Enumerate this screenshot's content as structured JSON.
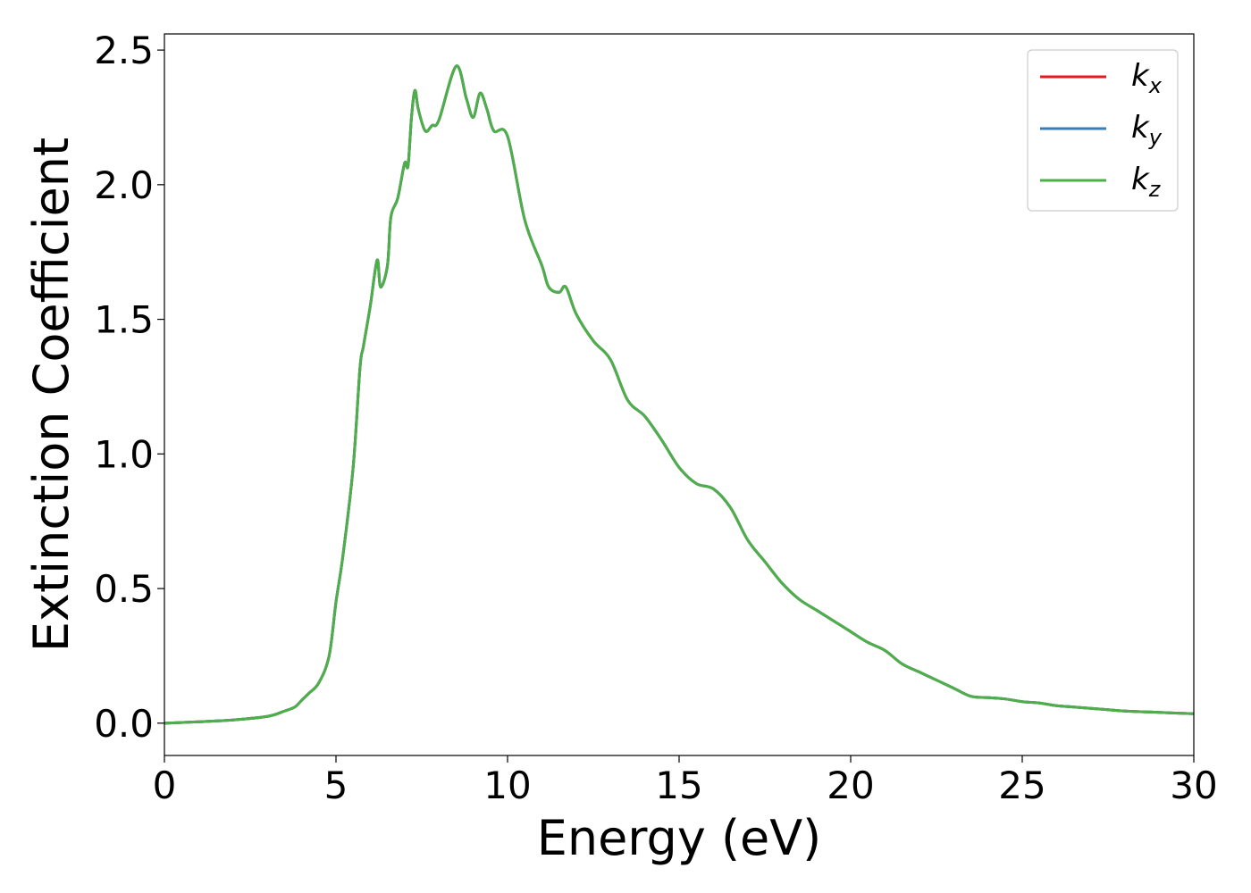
{
  "chart_data": {
    "type": "line",
    "xlabel": "Energy (eV)",
    "ylabel": "Extinction Coefficient",
    "xlim": [
      0,
      30
    ],
    "ylim": [
      -0.12,
      2.56
    ],
    "xticks": [
      0,
      5,
      10,
      15,
      20,
      25,
      30
    ],
    "xtick_labels": [
      "0",
      "5",
      "10",
      "15",
      "20",
      "25",
      "30"
    ],
    "yticks": [
      0.0,
      0.5,
      1.0,
      1.5,
      2.0,
      2.5
    ],
    "ytick_labels": [
      "0.0",
      "0.5",
      "1.0",
      "1.5",
      "2.0",
      "2.5"
    ],
    "grid": false,
    "legend_position": "top-right",
    "x": [
      0,
      1,
      2,
      3,
      3.5,
      3.8,
      4.0,
      4.2,
      4.5,
      4.8,
      5.0,
      5.2,
      5.5,
      5.7,
      5.8,
      6.0,
      6.2,
      6.3,
      6.5,
      6.6,
      6.8,
      7.0,
      7.1,
      7.2,
      7.3,
      7.4,
      7.6,
      7.8,
      8.0,
      8.5,
      8.8,
      9.0,
      9.2,
      9.4,
      9.6,
      10.0,
      10.5,
      11.0,
      11.2,
      11.5,
      11.7,
      12.0,
      12.5,
      13.0,
      13.5,
      14.0,
      14.5,
      15.0,
      15.5,
      16.0,
      16.5,
      17.0,
      17.5,
      18.0,
      18.5,
      19.0,
      19.5,
      20.0,
      20.5,
      21.0,
      21.5,
      22.0,
      22.5,
      23.0,
      23.5,
      24.0,
      24.5,
      25.0,
      25.5,
      26.0,
      26.5,
      27.0,
      27.5,
      28.0,
      29.0,
      30.0
    ],
    "series": [
      {
        "name": "k_x",
        "label_base": "k",
        "label_sub": "x",
        "color": "#e41a1c",
        "values": [
          0.0,
          0.005,
          0.012,
          0.025,
          0.045,
          0.06,
          0.085,
          0.11,
          0.15,
          0.25,
          0.45,
          0.62,
          0.95,
          1.32,
          1.4,
          1.55,
          1.72,
          1.62,
          1.7,
          1.88,
          1.95,
          2.08,
          2.07,
          2.25,
          2.35,
          2.28,
          2.2,
          2.22,
          2.24,
          2.44,
          2.32,
          2.25,
          2.34,
          2.28,
          2.2,
          2.18,
          1.87,
          1.7,
          1.62,
          1.6,
          1.62,
          1.52,
          1.42,
          1.35,
          1.2,
          1.14,
          1.05,
          0.95,
          0.89,
          0.87,
          0.8,
          0.68,
          0.6,
          0.52,
          0.46,
          0.42,
          0.38,
          0.34,
          0.3,
          0.27,
          0.22,
          0.19,
          0.16,
          0.13,
          0.1,
          0.095,
          0.09,
          0.08,
          0.075,
          0.065,
          0.06,
          0.055,
          0.05,
          0.045,
          0.04,
          0.035
        ]
      },
      {
        "name": "k_y",
        "label_base": "k",
        "label_sub": "y",
        "color": "#377eb8",
        "values": [
          0.0,
          0.005,
          0.012,
          0.025,
          0.045,
          0.06,
          0.085,
          0.11,
          0.15,
          0.25,
          0.45,
          0.62,
          0.95,
          1.32,
          1.4,
          1.55,
          1.72,
          1.62,
          1.7,
          1.88,
          1.95,
          2.08,
          2.07,
          2.25,
          2.35,
          2.28,
          2.2,
          2.22,
          2.24,
          2.44,
          2.32,
          2.25,
          2.34,
          2.28,
          2.2,
          2.18,
          1.87,
          1.7,
          1.62,
          1.6,
          1.62,
          1.52,
          1.42,
          1.35,
          1.2,
          1.14,
          1.05,
          0.95,
          0.89,
          0.87,
          0.8,
          0.68,
          0.6,
          0.52,
          0.46,
          0.42,
          0.38,
          0.34,
          0.3,
          0.27,
          0.22,
          0.19,
          0.16,
          0.13,
          0.1,
          0.095,
          0.09,
          0.08,
          0.075,
          0.065,
          0.06,
          0.055,
          0.05,
          0.045,
          0.04,
          0.035
        ]
      },
      {
        "name": "k_z",
        "label_base": "k",
        "label_sub": "z",
        "color": "#4daf4a",
        "values": [
          0.0,
          0.005,
          0.012,
          0.025,
          0.045,
          0.06,
          0.085,
          0.11,
          0.15,
          0.25,
          0.45,
          0.62,
          0.95,
          1.32,
          1.4,
          1.55,
          1.72,
          1.62,
          1.7,
          1.88,
          1.95,
          2.08,
          2.07,
          2.25,
          2.35,
          2.28,
          2.2,
          2.22,
          2.24,
          2.44,
          2.32,
          2.25,
          2.34,
          2.28,
          2.2,
          2.18,
          1.87,
          1.7,
          1.62,
          1.6,
          1.62,
          1.52,
          1.42,
          1.35,
          1.2,
          1.14,
          1.05,
          0.95,
          0.89,
          0.87,
          0.8,
          0.68,
          0.6,
          0.52,
          0.46,
          0.42,
          0.38,
          0.34,
          0.3,
          0.27,
          0.22,
          0.19,
          0.16,
          0.13,
          0.1,
          0.095,
          0.09,
          0.08,
          0.075,
          0.065,
          0.06,
          0.055,
          0.05,
          0.045,
          0.04,
          0.035
        ]
      }
    ]
  }
}
